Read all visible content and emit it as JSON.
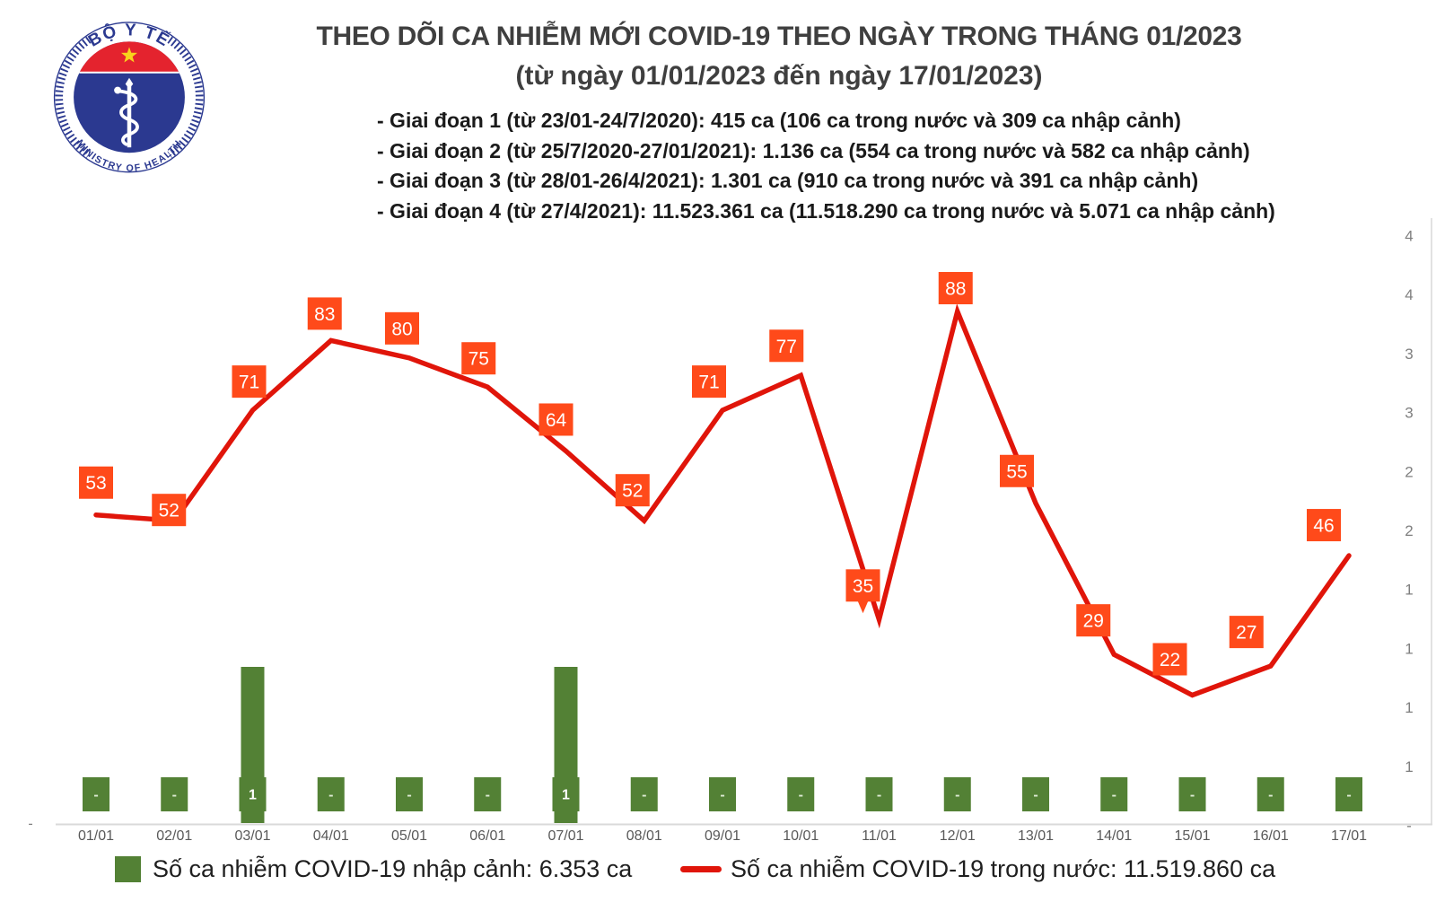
{
  "logo": {
    "top_text": "BỘ Y TẾ",
    "bottom_text": "MINISTRY OF HEALTH",
    "blue": "#2b3990",
    "red": "#e4232e",
    "star_yellow": "#f8d31c"
  },
  "header": {
    "title": "THEO DÕI CA NHIỄM MỚI COVID-19 THEO NGÀY TRONG THÁNG 01/2023",
    "subtitle": "(từ ngày 01/01/2023 đến ngày 17/01/2023)",
    "bullets": [
      "- Giai đoạn 1 (từ 23/01-24/7/2020): 415 ca (106 ca trong nước và 309 ca nhập cảnh)",
      "- Giai đoạn 2 (từ 25/7/2020-27/01/2021): 1.136 ca (554 ca trong nước và 582 ca nhập cảnh)",
      "- Giai đoạn 3 (từ 28/01-26/4/2021): 1.301 ca (910 ca trong nước và 391 ca nhập cảnh)",
      "- Giai đoạn 4 (từ 27/4/2021): 11.523.361 ca (11.518.290 ca trong nước và 5.071 ca nhập cảnh)"
    ]
  },
  "chart_data": {
    "type": "line+bar",
    "categories": [
      "01/01",
      "02/01",
      "03/01",
      "04/01",
      "05/01",
      "06/01",
      "07/01",
      "08/01",
      "09/01",
      "10/01",
      "11/01",
      "12/01",
      "13/01",
      "14/01",
      "15/01",
      "16/01",
      "17/01"
    ],
    "series": [
      {
        "name": "Số ca nhiễm COVID-19 trong nước",
        "type": "line",
        "color": "#e0150a",
        "label_bg": "#ff4a1a",
        "values": [
          53,
          52,
          71,
          83,
          80,
          75,
          64,
          52,
          71,
          77,
          35,
          88,
          55,
          29,
          22,
          27,
          46
        ]
      },
      {
        "name": "Số ca nhiễm COVID-19 nhập cảnh",
        "type": "bar",
        "color": "#538135",
        "values": [
          0,
          0,
          1,
          0,
          0,
          0,
          1,
          0,
          0,
          0,
          0,
          0,
          0,
          0,
          0,
          0,
          0
        ],
        "labels": [
          "-",
          "-",
          "1",
          "-",
          "-",
          "-",
          "1",
          "-",
          "-",
          "-",
          "-",
          "-",
          "-",
          "-",
          "-",
          "-",
          "-"
        ]
      }
    ],
    "right_axis_labels": [
      "4",
      "4",
      "3",
      "3",
      "2",
      "2",
      "1",
      "1",
      "1",
      "1",
      "-"
    ],
    "left_axis_zero_label": "-",
    "axis_color": "#d9d9d9",
    "tick_color": "#595959",
    "right_tick_color": "#7f7f7f",
    "legend": [
      {
        "swatch": "square",
        "label": "Số ca nhiễm COVID-19 nhập cảnh: 6.353 ca"
      },
      {
        "swatch": "line",
        "label": "Số ca nhiễm COVID-19 trong nước: 11.519.860 ca"
      }
    ]
  }
}
